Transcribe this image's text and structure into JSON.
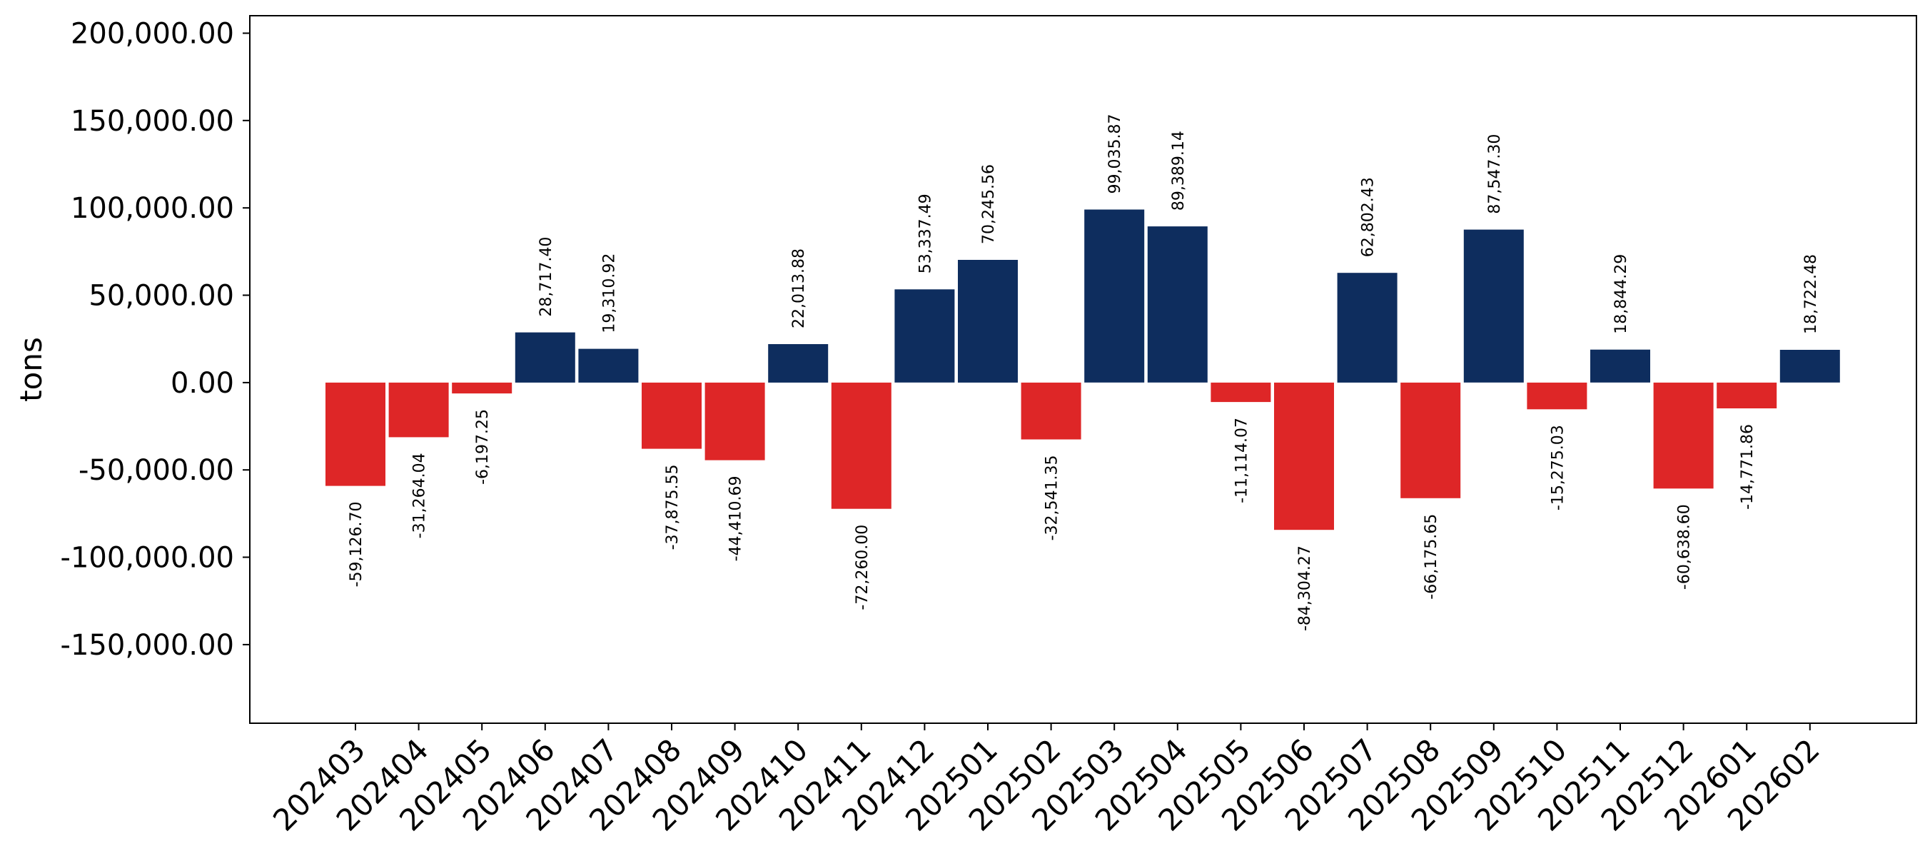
{
  "chart_data": {
    "type": "bar",
    "title": "",
    "xlabel": "",
    "ylabel": "tons",
    "ylim": [
      -195000,
      210000
    ],
    "yticks": [
      -150000,
      -100000,
      -50000,
      0,
      50000,
      100000,
      150000,
      200000
    ],
    "ytick_labels": [
      "-150,000.00",
      "-100,000.00",
      "-50,000.00",
      "0.00",
      "50,000.00",
      "100,000.00",
      "150,000.00",
      "200,000.00"
    ],
    "categories": [
      "202403",
      "202404",
      "202405",
      "202406",
      "202407",
      "202408",
      "202409",
      "202410",
      "202411",
      "202412",
      "202501",
      "202502",
      "202503",
      "202504",
      "202505",
      "202506",
      "202507",
      "202508",
      "202509",
      "202510",
      "202511",
      "202512",
      "202601",
      "202602"
    ],
    "values": [
      -59126.7,
      -31264.04,
      -6197.25,
      28717.4,
      19310.92,
      -37875.55,
      -44410.69,
      22013.88,
      -72260.0,
      53337.49,
      70245.56,
      -32541.35,
      99035.87,
      89389.14,
      -11114.07,
      -84304.27,
      62802.43,
      -66175.65,
      87547.3,
      -15275.03,
      18844.29,
      -60638.6,
      -14771.86,
      18722.48
    ],
    "value_labels": [
      "-59,126.70",
      "-31,264.04",
      "-6,197.25",
      "28,717.40",
      "19,310.92",
      "-37,875.55",
      "-44,410.69",
      "22,013.88",
      "-72,260.00",
      "53,337.49",
      "70,245.56",
      "-32,541.35",
      "99,035.87",
      "89,389.14",
      "-11,114.07",
      "-84,304.27",
      "62,802.43",
      "-66,175.65",
      "87,547.30",
      "-15,275.03",
      "18,844.29",
      "-60,638.60",
      "-14,771.86",
      "18,722.48"
    ],
    "colors": {
      "positive": "#0e2d5e",
      "negative": "#de2627"
    },
    "grid": false,
    "legend": "none"
  }
}
